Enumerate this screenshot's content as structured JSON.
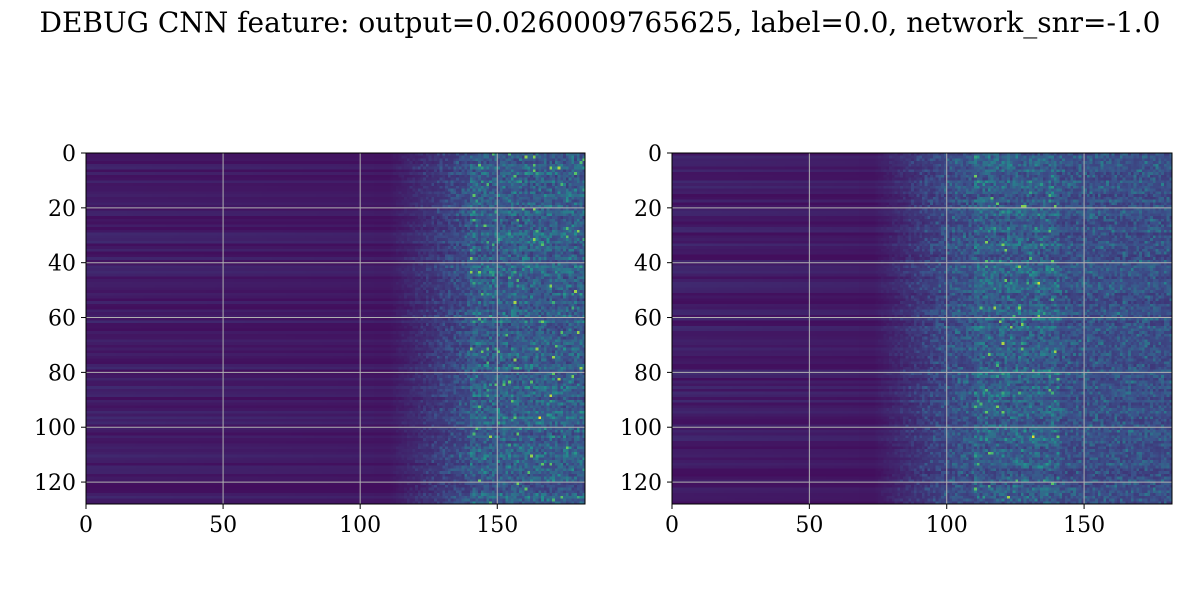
{
  "figure": {
    "title": "DEBUG CNN feature: output=0.0260009765625, label=0.0, network_snr=-1.0"
  },
  "chart_data": [
    {
      "type": "heatmap",
      "title": "",
      "xlabel": "",
      "ylabel": "",
      "colormap": "viridis",
      "rows": 128,
      "cols": 182,
      "xlim": [
        0,
        182
      ],
      "ylim": [
        128,
        0
      ],
      "y_inverted": true,
      "grid": true,
      "grid_color": "#b0b0b0",
      "xticks": [
        0,
        50,
        100,
        150
      ],
      "yticks": [
        0,
        20,
        40,
        60,
        80,
        100,
        120
      ],
      "xtick_labels": [
        "0",
        "50",
        "100",
        "150"
      ],
      "ytick_labels": [
        "0",
        "20",
        "40",
        "60",
        "80",
        "100",
        "120"
      ],
      "signal_onset_column": 125,
      "peak_region_columns": [
        140,
        182
      ]
    },
    {
      "type": "heatmap",
      "title": "",
      "xlabel": "",
      "ylabel": "",
      "colormap": "viridis",
      "rows": 128,
      "cols": 182,
      "xlim": [
        0,
        182
      ],
      "ylim": [
        128,
        0
      ],
      "y_inverted": true,
      "grid": true,
      "grid_color": "#b0b0b0",
      "xticks": [
        0,
        50,
        100,
        150
      ],
      "yticks": [
        0,
        20,
        40,
        60,
        80,
        100,
        120
      ],
      "xtick_labels": [
        "0",
        "50",
        "100",
        "150"
      ],
      "ytick_labels": [
        "0",
        "20",
        "40",
        "60",
        "80",
        "100",
        "120"
      ],
      "signal_onset_column": 88,
      "peak_region_columns": [
        110,
        140
      ]
    }
  ]
}
